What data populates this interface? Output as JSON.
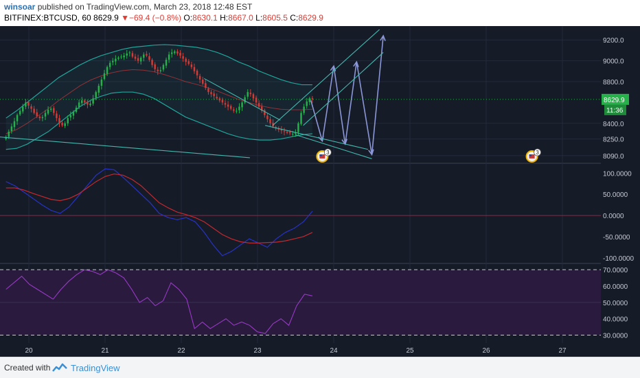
{
  "header": {
    "author": "winsoar",
    "published_text": "published on TradingView.com, March 23, 2018 12:48 EST",
    "symbol": "BITFINEX:BTCUSD, 60",
    "last_price": "8629.9",
    "change": "−69.4 (−0.8%)",
    "open_label": "O:",
    "open": "8630.1",
    "high_label": "H:",
    "high": "8667.0",
    "low_label": "L:",
    "low": "8605.5",
    "close_label": "C:",
    "close": "8629.9"
  },
  "footer": {
    "created_with": "Created with",
    "brand": "TradingView"
  },
  "price_badge": {
    "value": "8629.9",
    "countdown": "11:36"
  },
  "event_markers": [
    {
      "label": "3",
      "x": 23.85
    },
    {
      "label": "3",
      "x": 26.6
    }
  ],
  "colors": {
    "background": "#161b28",
    "up": "#27b14a",
    "down": "#d63a35",
    "bollinger": "#1fa59a",
    "macd": "#2633c8",
    "signal": "#c6282e",
    "rsi": "#9a39c9",
    "rsi_band": "#2a1a3e",
    "trendline": "#43b7ad",
    "projection": "#8b97d6"
  },
  "chart_data": [
    {
      "type": "candlestick",
      "title": "BITFINEX:BTCUSD, 60",
      "x_ticks": [
        "20",
        "21",
        "22",
        "23",
        "24",
        "25",
        "26",
        "27"
      ],
      "y_ticks": [
        "9200.0",
        "9000.0",
        "8800.0",
        "8400.0",
        "8250.0",
        "8090.0"
      ],
      "ylim": [
        8030,
        9320
      ],
      "last_close": 8629.9,
      "current_price_line": 8629.9,
      "series": [
        {
          "name": "price",
          "close": [
            8270,
            8320,
            8370,
            8420,
            8480,
            8520,
            8560,
            8600,
            8570,
            8540,
            8500,
            8470,
            8450,
            8460,
            8500,
            8530,
            8540,
            8500,
            8450,
            8400,
            8380,
            8400,
            8450,
            8480,
            8510,
            8550,
            8600,
            8620,
            8600,
            8580,
            8590,
            8640,
            8700,
            8760,
            8820,
            8880,
            8940,
            8980,
            9000,
            9020,
            9030,
            9040,
            9050,
            9070,
            9080,
            9040,
            9020,
            9000,
            9030,
            9060,
            9050,
            9010,
            8960,
            8920,
            8900,
            8910,
            8960,
            9010,
            9060,
            9080,
            9090,
            9070,
            9050,
            9020,
            8990,
            8970,
            8940,
            8900,
            8860,
            8820,
            8780,
            8740,
            8700,
            8680,
            8660,
            8640,
            8620,
            8600,
            8580,
            8560,
            8540,
            8520,
            8520,
            8560,
            8600,
            8650,
            8700,
            8680,
            8640,
            8600,
            8560,
            8520,
            8480,
            8440,
            8400,
            8370,
            8350,
            8340,
            8330,
            8320,
            8310,
            8305,
            8300,
            8310,
            8400,
            8500,
            8560,
            8610,
            8640,
            8629.9
          ]
        },
        {
          "name": "bollinger_upper",
          "values": [
            8450,
            8520,
            8600,
            8680,
            8760,
            8840,
            8900,
            8960,
            9010,
            9050,
            9080,
            9110,
            9130,
            9140,
            9150,
            9155,
            9150,
            9140,
            9130,
            9110,
            9080,
            9040,
            8990,
            8950,
            8900,
            8860,
            8820,
            8790,
            8770,
            8770
          ]
        },
        {
          "name": "bollinger_lower",
          "values": [
            8150,
            8160,
            8200,
            8260,
            8320,
            8400,
            8480,
            8560,
            8620,
            8660,
            8690,
            8700,
            8700,
            8680,
            8640,
            8580,
            8520,
            8460,
            8420,
            8380,
            8340,
            8300,
            8270,
            8250,
            8240,
            8240,
            8250,
            8270,
            8290,
            8300
          ]
        }
      ],
      "annotations": [
        {
          "type": "projection_path",
          "points": [
            [
              23.7,
              8620
            ],
            [
              23.85,
              8230
            ],
            [
              24.0,
              8950
            ],
            [
              24.15,
              8200
            ],
            [
              24.3,
              8990
            ],
            [
              24.5,
              8100
            ],
            [
              24.65,
              9240
            ]
          ]
        },
        {
          "type": "channel",
          "lines": [
            [
              [
                23.2,
                8380
              ],
              [
                24.6,
                9300
              ]
            ],
            [
              [
                23.6,
                8380
              ],
              [
                24.65,
                9080
              ]
            ],
            [
              [
                23.1,
                8380
              ],
              [
                24.45,
                8150
              ]
            ],
            [
              [
                23.5,
                8290
              ],
              [
                24.5,
                8060
              ]
            ],
            [
              [
                22.3,
                8830
              ],
              [
                23.3,
                8430
              ]
            ],
            [
              [
                19.6,
                8270
              ],
              [
                22.9,
                8070
              ]
            ]
          ]
        }
      ]
    },
    {
      "type": "line",
      "title": "",
      "x_ticks": [
        "20",
        "21",
        "22",
        "23",
        "24",
        "25",
        "26",
        "27"
      ],
      "y_ticks": [
        "100.0000",
        "50.0000",
        "0.0000",
        "-50.0000",
        "-100.0000"
      ],
      "ylim": [
        -110,
        120
      ],
      "series": [
        {
          "name": "",
          "values": [
            80,
            70,
            55,
            40,
            25,
            12,
            5,
            20,
            45,
            70,
            95,
            110,
            108,
            90,
            70,
            50,
            30,
            5,
            -5,
            -10,
            -5,
            -15,
            -40,
            -70,
            -95,
            -85,
            -70,
            -55,
            -65,
            -75,
            -55,
            -40,
            -30,
            -15,
            10
          ]
        },
        {
          "name": "",
          "values": [
            65,
            65,
            60,
            52,
            45,
            38,
            35,
            40,
            50,
            65,
            80,
            92,
            98,
            95,
            85,
            70,
            50,
            30,
            18,
            8,
            2,
            -5,
            -15,
            -30,
            -45,
            -55,
            -62,
            -65,
            -65,
            -64,
            -63,
            -60,
            -55,
            -50,
            -40
          ]
        }
      ]
    },
    {
      "type": "line",
      "title": "",
      "x_ticks": [
        "20",
        "21",
        "22",
        "23",
        "24",
        "25",
        "26",
        "27"
      ],
      "y_ticks": [
        "70.0000",
        "60.0000",
        "50.0000",
        "40.0000",
        "30.0000"
      ],
      "ylim": [
        26,
        73
      ],
      "band": [
        30,
        70
      ],
      "series": [
        {
          "name": "",
          "values": [
            58,
            62,
            66,
            61,
            58,
            55,
            52,
            58,
            63,
            67,
            70,
            69,
            67,
            70,
            68,
            65,
            58,
            50,
            53,
            48,
            51,
            62,
            58,
            52,
            34,
            38,
            34,
            37,
            40,
            36,
            38,
            36,
            32,
            31,
            37,
            40,
            36,
            48,
            55,
            54
          ]
        }
      ]
    }
  ]
}
